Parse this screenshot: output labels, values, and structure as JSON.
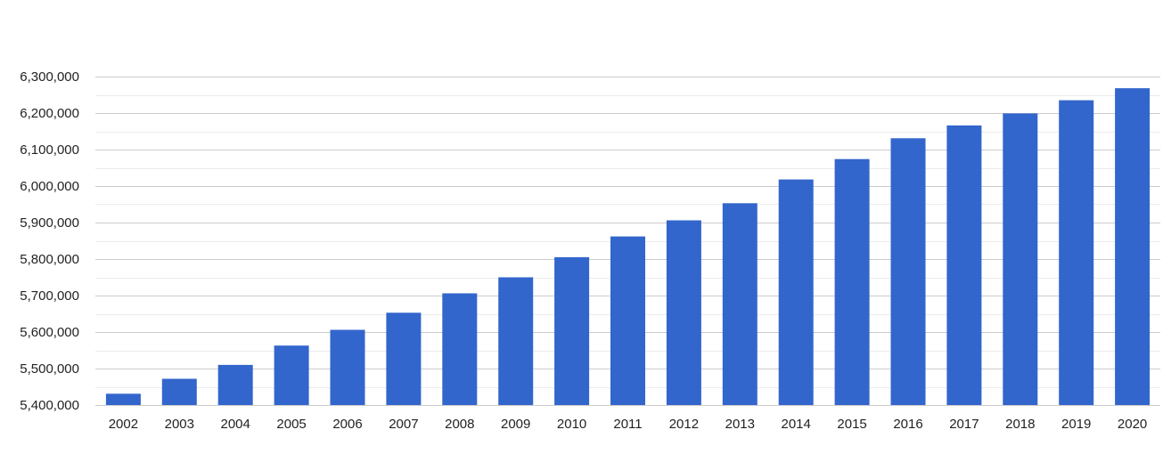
{
  "chart_data": {
    "type": "bar",
    "title": "",
    "xlabel": "",
    "ylabel": "",
    "categories": [
      "2002",
      "2003",
      "2004",
      "2005",
      "2006",
      "2007",
      "2008",
      "2009",
      "2010",
      "2011",
      "2012",
      "2013",
      "2014",
      "2015",
      "2016",
      "2017",
      "2018",
      "2019",
      "2020"
    ],
    "values": [
      5431000,
      5472000,
      5510000,
      5563000,
      5606000,
      5653000,
      5706000,
      5750000,
      5805000,
      5862000,
      5906000,
      5953000,
      6018000,
      6074000,
      6131000,
      6166000,
      6199000,
      6235000,
      6268000
    ],
    "ylim": [
      5400000,
      6300000
    ],
    "yticks": [
      5400000,
      5500000,
      5600000,
      5700000,
      5800000,
      5900000,
      6000000,
      6100000,
      6200000,
      6300000
    ],
    "ytick_labels": [
      "5,400,000",
      "5,500,000",
      "5,600,000",
      "5,700,000",
      "5,800,000",
      "5,900,000",
      "6,000,000",
      "6,100,000",
      "6,200,000",
      "6,300,000"
    ],
    "grid": true,
    "bar_color": "#3366cc",
    "grid_color": "#cccccc",
    "minor_grid_color": "#ebebeb"
  }
}
